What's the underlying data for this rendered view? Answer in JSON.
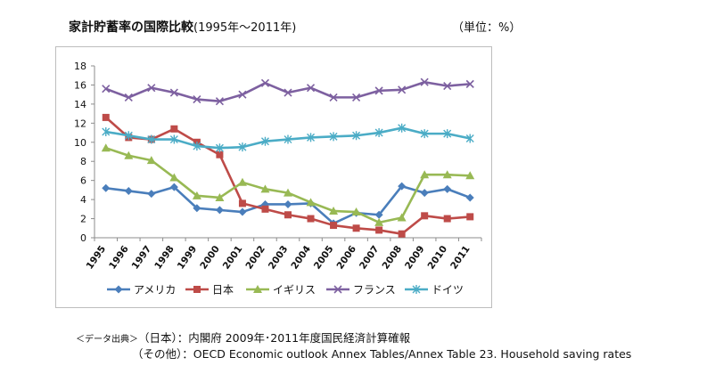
{
  "title": {
    "main": "家計貯蓄率の国際比較",
    "range": "(1995年～2011年)"
  },
  "unit_label": "（単位：%）",
  "notes": {
    "source_tag": "＜データ出典＞",
    "line1": "（日本）：内閣府  2009年･2011年度国民経済計算確報",
    "line2": "（その他）：OECD Economic outlook Annex Tables/Annex Table 23. Household saving rates"
  },
  "chart_data": {
    "type": "line",
    "title": "家計貯蓄率の国際比較(1995年～2011年)",
    "xlabel": "",
    "ylabel": "（単位：%）",
    "ylim": [
      0,
      18
    ],
    "yticks": [
      0,
      2,
      4,
      6,
      8,
      10,
      12,
      14,
      16,
      18
    ],
    "grid": false,
    "legend_position": "bottom",
    "categories": [
      "1995",
      "1996",
      "1997",
      "1998",
      "1999",
      "2000",
      "2001",
      "2002",
      "2003",
      "2004",
      "2005",
      "2006",
      "2007",
      "2008",
      "2009",
      "2010",
      "2011"
    ],
    "series": [
      {
        "name": "アメリカ",
        "color": "#4a7ebb",
        "marker": "diamond",
        "values": [
          5.2,
          4.9,
          4.6,
          5.3,
          3.1,
          2.9,
          2.7,
          3.5,
          3.5,
          3.6,
          1.5,
          2.6,
          2.4,
          5.4,
          4.7,
          5.1,
          4.2
        ]
      },
      {
        "name": "日本",
        "color": "#be4b48",
        "marker": "square",
        "values": [
          12.6,
          10.5,
          10.3,
          11.4,
          10.0,
          8.7,
          3.6,
          3.0,
          2.4,
          2.0,
          1.3,
          1.0,
          0.8,
          0.4,
          2.3,
          2.0,
          2.2
        ]
      },
      {
        "name": "イギリス",
        "color": "#98b954",
        "marker": "triangle",
        "values": [
          9.4,
          8.6,
          8.1,
          6.3,
          4.4,
          4.2,
          5.8,
          5.1,
          4.7,
          3.7,
          2.8,
          2.7,
          1.6,
          2.1,
          6.6,
          6.6,
          6.5
        ]
      },
      {
        "name": "フランス",
        "color": "#7d60a0",
        "marker": "x",
        "values": [
          15.6,
          14.7,
          15.7,
          15.2,
          14.5,
          14.3,
          15.0,
          16.2,
          15.2,
          15.7,
          14.7,
          14.7,
          15.4,
          15.5,
          16.3,
          15.9,
          16.1
        ]
      },
      {
        "name": "ドイツ",
        "color": "#4bacc6",
        "marker": "star",
        "values": [
          11.1,
          10.7,
          10.3,
          10.3,
          9.6,
          9.4,
          9.5,
          10.1,
          10.3,
          10.5,
          10.6,
          10.7,
          11.0,
          11.5,
          10.9,
          10.9,
          10.4
        ]
      }
    ]
  }
}
